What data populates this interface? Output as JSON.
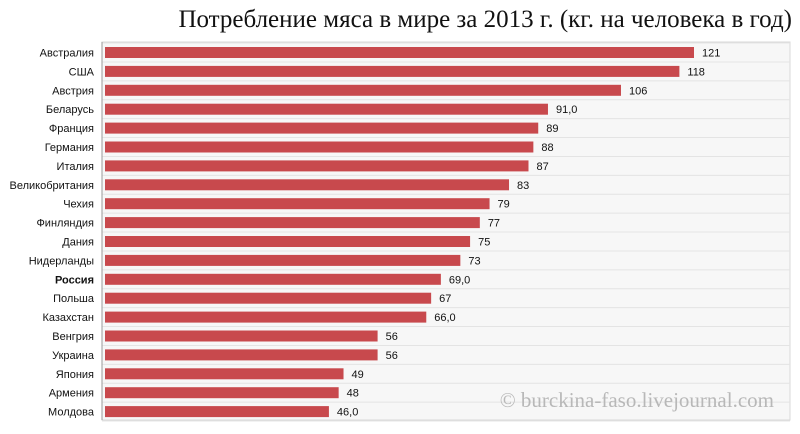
{
  "title": "Потребление мяса в мире за 2013 г. (кг. на человека  в год)",
  "watermark": "© burckina-faso.livejournal.com",
  "chart_data": {
    "type": "bar",
    "orientation": "horizontal",
    "title": "Потребление мяса в мире за 2013 г. (кг. на человека  в год)",
    "xlabel": "",
    "ylabel": "",
    "xlim": [
      0,
      128
    ],
    "grid": true,
    "bar_color": "#c8494d",
    "highlight": "Россия",
    "categories": [
      "Австралия",
      "США",
      "Австрия",
      "Беларусь",
      "Франция",
      "Германия",
      "Италия",
      "Великобритания",
      "Чехия",
      "Финляндия",
      "Дания",
      "Нидерланды",
      "Россия",
      "Польша",
      "Казахстан",
      "Венгрия",
      "Украина",
      "Япония",
      "Армения",
      "Молдова"
    ],
    "values": [
      121,
      118,
      106,
      91,
      89,
      88,
      87,
      83,
      79,
      77,
      75,
      73,
      69,
      67,
      66,
      56,
      56,
      49,
      48,
      46
    ],
    "labels": [
      "121",
      "118",
      "106",
      "91,0",
      "89",
      "88",
      "87",
      "83",
      "79",
      "77",
      "75",
      "73",
      "69,0",
      "67",
      "66,0",
      "56",
      "56",
      "49",
      "48",
      "46,0"
    ]
  }
}
